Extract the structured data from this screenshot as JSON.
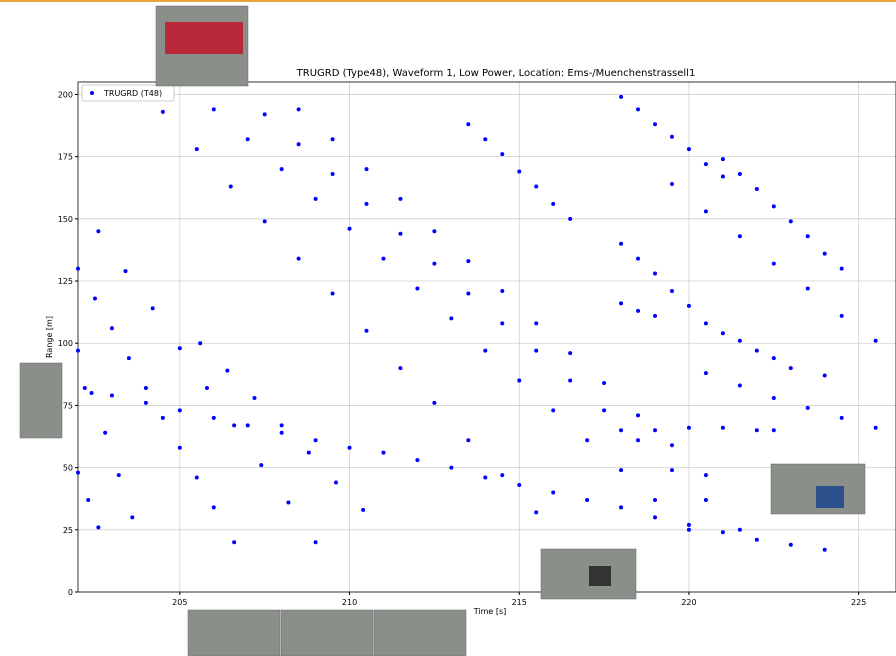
{
  "chart_data": {
    "type": "scatter",
    "title": "TRUGRD (Type48), Waveform 1, Low Power, Location: Ems-/Muenchenstrassell1",
    "x_label": "Time [s]",
    "y_label": "Range [m]",
    "series": [
      {
        "name": "TRUGRD (T48)",
        "color": "#0000ff",
        "x": [
          202.0,
          202.5,
          203.0,
          203.5,
          204.0,
          204.5,
          205.0,
          205.5,
          206.0,
          206.6,
          202.0,
          202.4,
          202.8,
          203.2,
          203.6,
          202.0,
          202.3,
          202.6,
          202.6,
          203.4,
          204.2,
          205.0,
          205.8,
          206.6,
          207.4,
          208.2,
          209.0,
          205.6,
          206.4,
          207.2,
          208.0,
          208.8,
          209.6,
          210.4,
          202.2,
          203,
          204,
          205,
          206,
          207,
          208,
          209,
          210,
          211,
          212,
          213,
          214,
          215,
          216,
          217,
          218,
          219,
          220,
          221,
          222,
          223,
          224,
          204.5,
          205.5,
          206.5,
          207.5,
          208.5,
          209.5,
          210.5,
          211.5,
          212.5,
          213.5,
          214.5,
          215.5,
          206,
          207,
          208,
          209,
          210,
          211,
          212,
          213,
          214,
          215,
          216,
          217,
          218,
          219,
          220,
          207.5,
          208.5,
          209.5,
          210.5,
          211.5,
          212.5,
          213.5,
          214.5,
          215.5,
          216.5,
          217.5,
          218.5,
          219.5,
          220.5,
          221.5,
          208.5,
          209.5,
          210.5,
          211.5,
          212.5,
          213.5,
          214.5,
          215.5,
          216.5,
          217.5,
          218.5,
          219.5,
          220.5,
          213.5,
          214,
          214.5,
          215,
          215.5,
          216,
          216.5,
          218,
          218.5,
          219,
          219.5,
          220,
          220.5,
          221,
          221,
          221.5,
          222,
          222.5,
          223,
          223.5,
          224,
          224.5,
          219.5,
          220.5,
          221.5,
          222.5,
          223.5,
          224.5,
          225.5,
          218,
          218.5,
          219,
          219.5,
          220,
          220.5,
          221,
          221.5,
          222,
          222.5,
          223,
          224,
          218,
          218.5,
          219,
          218,
          219,
          220,
          221,
          222,
          222.5,
          220.5,
          221.5,
          222.5,
          223.5,
          224.5,
          225.5
        ],
        "values": [
          130,
          118,
          106,
          94,
          82,
          70,
          58,
          46,
          34,
          20,
          97,
          80,
          64,
          47,
          30,
          48,
          37,
          26,
          145,
          129,
          114,
          98,
          82,
          67,
          51,
          36,
          20,
          100,
          89,
          78,
          67,
          56,
          44,
          33,
          82,
          79,
          76,
          73,
          70,
          67,
          64,
          61,
          58,
          56,
          53,
          50,
          46,
          43,
          40,
          37,
          34,
          30,
          27,
          24,
          21,
          19,
          17,
          193,
          178,
          163,
          149,
          134,
          120,
          105,
          90,
          76,
          61,
          47,
          32,
          194,
          182,
          170,
          158,
          146,
          134,
          122,
          110,
          97,
          85,
          73,
          61,
          49,
          37,
          25,
          192,
          180,
          168,
          156,
          144,
          132,
          120,
          108,
          97,
          85,
          73,
          61,
          49,
          37,
          25,
          194,
          182,
          170,
          158,
          145,
          133,
          121,
          108,
          96,
          84,
          71,
          59,
          47,
          188,
          182,
          176,
          169,
          163,
          156,
          150,
          199,
          194,
          188,
          183,
          178,
          172,
          167,
          174,
          168,
          162,
          155,
          149,
          143,
          136,
          130,
          164,
          153,
          143,
          132,
          122,
          111,
          101,
          140,
          134,
          128,
          121,
          115,
          108,
          104,
          101,
          97,
          94,
          90,
          87,
          116,
          113,
          111,
          65,
          65,
          66,
          66,
          65,
          65,
          88,
          83,
          78,
          74,
          70,
          66
        ]
      }
    ],
    "xlim": [
      202,
      226.1
    ],
    "ylim": [
      0,
      205
    ],
    "xticks": [
      205,
      210,
      215,
      220,
      225
    ],
    "yticks": [
      0,
      25,
      50,
      75,
      100,
      125,
      150,
      175,
      200
    ],
    "grid": true,
    "legend": "upper left"
  }
}
